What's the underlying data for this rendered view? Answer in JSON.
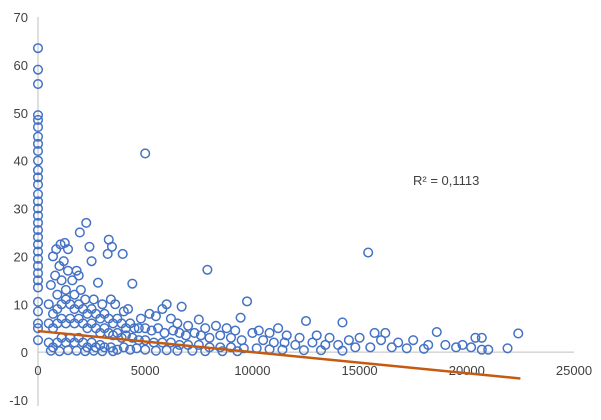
{
  "chart_data": {
    "type": "scatter",
    "title": "",
    "xlabel": "",
    "ylabel": "",
    "xlim": [
      0,
      25000
    ],
    "ylim": [
      -10,
      70
    ],
    "xticks": [
      0,
      5000,
      10000,
      15000,
      20000,
      25000
    ],
    "yticks": [
      -10,
      0,
      10,
      20,
      30,
      40,
      50,
      60,
      70
    ],
    "xtick_labels": [
      "0",
      "5000",
      "10000",
      "15000",
      "20000",
      "25000"
    ],
    "ytick_labels": [
      "-10",
      "0",
      "10",
      "20",
      "30",
      "40",
      "50",
      "60",
      "70"
    ],
    "grid": false,
    "legend": "none",
    "marker_color": "#4472C4",
    "trendline_color": "#C55A11",
    "trendline": {
      "type": "linear",
      "x": [
        0,
        22500
      ],
      "y": [
        4.4,
        -5.5
      ]
    },
    "annotation": "R² = 0,1113",
    "points": [
      [
        0,
        63.5
      ],
      [
        0,
        59
      ],
      [
        0,
        56
      ],
      [
        0,
        49.5
      ],
      [
        0,
        48.5
      ],
      [
        0,
        47
      ],
      [
        0,
        45
      ],
      [
        0,
        43.5
      ],
      [
        0,
        42
      ],
      [
        0,
        40
      ],
      [
        0,
        38
      ],
      [
        0,
        36.5
      ],
      [
        0,
        35
      ],
      [
        0,
        33
      ],
      [
        0,
        31.5
      ],
      [
        0,
        30
      ],
      [
        0,
        28.5
      ],
      [
        0,
        27
      ],
      [
        0,
        25.5
      ],
      [
        0,
        24
      ],
      [
        0,
        22.5
      ],
      [
        0,
        21
      ],
      [
        0,
        19.5
      ],
      [
        0,
        18
      ],
      [
        0,
        16.5
      ],
      [
        0,
        15
      ],
      [
        0,
        13.5
      ],
      [
        0,
        10.5
      ],
      [
        0,
        8.5
      ],
      [
        0,
        6
      ],
      [
        0,
        5
      ],
      [
        0,
        2.5
      ],
      [
        5000,
        41.5
      ],
      [
        2250,
        27
      ],
      [
        1950,
        25
      ],
      [
        3300,
        23.5
      ],
      [
        3450,
        22
      ],
      [
        2400,
        22
      ],
      [
        1050,
        22.5
      ],
      [
        1250,
        22.8
      ],
      [
        850,
        21.5
      ],
      [
        1400,
        21.5
      ],
      [
        3250,
        20.5
      ],
      [
        3950,
        20.5
      ],
      [
        700,
        20
      ],
      [
        2500,
        19
      ],
      [
        15400,
        20.8
      ],
      [
        7900,
        17.2
      ],
      [
        1800,
        17
      ],
      [
        1900,
        16
      ],
      [
        4400,
        14.3
      ],
      [
        2800,
        14.5
      ],
      [
        9750,
        10.6
      ],
      [
        6000,
        10
      ],
      [
        5800,
        9
      ],
      [
        6700,
        9.5
      ],
      [
        4000,
        8.5
      ],
      [
        9450,
        7.2
      ],
      [
        7500,
        6.8
      ],
      [
        12500,
        6.5
      ],
      [
        14200,
        6.2
      ],
      [
        18600,
        4.2
      ],
      [
        20400,
        3
      ],
      [
        20700,
        3
      ],
      [
        22400,
        3.9
      ],
      [
        21900,
        0.8
      ],
      [
        20700,
        0.5
      ],
      [
        16200,
        4
      ],
      [
        15700,
        4
      ],
      [
        19800,
        1.5
      ],
      [
        11200,
        5
      ],
      [
        10300,
        4.5
      ],
      [
        600,
        14
      ],
      [
        800,
        16
      ],
      [
        1000,
        18
      ],
      [
        1200,
        19
      ],
      [
        1100,
        15
      ],
      [
        1400,
        17
      ],
      [
        1600,
        15
      ],
      [
        900,
        12
      ],
      [
        1300,
        13
      ],
      [
        1700,
        12
      ],
      [
        2000,
        13
      ],
      [
        2200,
        11
      ],
      [
        2600,
        11
      ],
      [
        3000,
        10
      ],
      [
        3400,
        11
      ],
      [
        3600,
        10
      ],
      [
        4200,
        9
      ],
      [
        4800,
        7
      ],
      [
        5200,
        8
      ],
      [
        5500,
        7.5
      ],
      [
        6200,
        7
      ],
      [
        6500,
        6
      ],
      [
        7000,
        5.5
      ],
      [
        7800,
        5
      ],
      [
        8300,
        5.5
      ],
      [
        8800,
        5
      ],
      [
        9200,
        4.5
      ],
      [
        10000,
        4
      ],
      [
        10800,
        4
      ],
      [
        11600,
        3.5
      ],
      [
        12200,
        3
      ],
      [
        13000,
        3.5
      ],
      [
        13600,
        3
      ],
      [
        14500,
        2.5
      ],
      [
        15000,
        3
      ],
      [
        16000,
        2.5
      ],
      [
        16800,
        2
      ],
      [
        17500,
        2.5
      ],
      [
        18200,
        1.5
      ],
      [
        19000,
        1.5
      ],
      [
        19500,
        1
      ],
      [
        20200,
        1
      ],
      [
        21000,
        0.5
      ],
      [
        500,
        10
      ],
      [
        700,
        8
      ],
      [
        900,
        9
      ],
      [
        1100,
        10
      ],
      [
        1300,
        11
      ],
      [
        1500,
        10
      ],
      [
        1700,
        9
      ],
      [
        1900,
        10
      ],
      [
        2100,
        9
      ],
      [
        2300,
        8
      ],
      [
        2500,
        9
      ],
      [
        2700,
        8
      ],
      [
        2900,
        7
      ],
      [
        3100,
        8
      ],
      [
        3300,
        7
      ],
      [
        3500,
        6
      ],
      [
        3700,
        7
      ],
      [
        3900,
        6
      ],
      [
        4100,
        5
      ],
      [
        4300,
        6
      ],
      [
        4500,
        5
      ],
      [
        4700,
        5
      ],
      [
        5000,
        5
      ],
      [
        5300,
        4.5
      ],
      [
        5600,
        5
      ],
      [
        5900,
        4
      ],
      [
        6300,
        4.5
      ],
      [
        6600,
        4
      ],
      [
        6900,
        3.5
      ],
      [
        7300,
        4
      ],
      [
        7600,
        3.5
      ],
      [
        8000,
        3
      ],
      [
        8500,
        3.5
      ],
      [
        9000,
        3
      ],
      [
        9500,
        2.5
      ],
      [
        10500,
        2.5
      ],
      [
        11000,
        2
      ],
      [
        11500,
        2
      ],
      [
        12000,
        1.5
      ],
      [
        12800,
        2
      ],
      [
        13400,
        1.5
      ],
      [
        14000,
        1.5
      ],
      [
        14800,
        1
      ],
      [
        15500,
        1
      ],
      [
        16500,
        1
      ],
      [
        17200,
        0.8
      ],
      [
        18000,
        0.7
      ],
      [
        500,
        6
      ],
      [
        700,
        5
      ],
      [
        900,
        6
      ],
      [
        1100,
        7
      ],
      [
        1300,
        6
      ],
      [
        1500,
        7
      ],
      [
        1700,
        6
      ],
      [
        1900,
        7
      ],
      [
        2100,
        6
      ],
      [
        2300,
        5
      ],
      [
        2500,
        6
      ],
      [
        2700,
        5
      ],
      [
        2900,
        4
      ],
      [
        3100,
        5
      ],
      [
        3300,
        4
      ],
      [
        3500,
        3.5
      ],
      [
        3700,
        4
      ],
      [
        3900,
        3
      ],
      [
        4100,
        3.5
      ],
      [
        4400,
        3
      ],
      [
        4700,
        2.5
      ],
      [
        5000,
        2.5
      ],
      [
        5400,
        2
      ],
      [
        5800,
        2
      ],
      [
        6200,
        2
      ],
      [
        6600,
        1.5
      ],
      [
        7000,
        1.5
      ],
      [
        7500,
        1.5
      ],
      [
        8000,
        1
      ],
      [
        8500,
        1
      ],
      [
        9000,
        1
      ],
      [
        9600,
        0.8
      ],
      [
        10200,
        0.8
      ],
      [
        10800,
        0.6
      ],
      [
        11400,
        0.5
      ],
      [
        12400,
        0.4
      ],
      [
        13200,
        0.4
      ],
      [
        14200,
        0.3
      ],
      [
        500,
        2
      ],
      [
        700,
        1
      ],
      [
        900,
        2
      ],
      [
        1100,
        3
      ],
      [
        1300,
        2
      ],
      [
        1500,
        3
      ],
      [
        1700,
        2
      ],
      [
        1900,
        3
      ],
      [
        2100,
        2
      ],
      [
        2300,
        1
      ],
      [
        2500,
        2
      ],
      [
        2700,
        1
      ],
      [
        2900,
        1.5
      ],
      [
        3100,
        1
      ],
      [
        3400,
        1
      ],
      [
        3700,
        0.5
      ],
      [
        4000,
        1
      ],
      [
        4300,
        0.5
      ],
      [
        4600,
        0.8
      ],
      [
        5000,
        0.5
      ],
      [
        5500,
        0.3
      ],
      [
        6000,
        0.4
      ],
      [
        6500,
        0.3
      ],
      [
        7200,
        0.3
      ],
      [
        7800,
        0.2
      ],
      [
        8600,
        0.2
      ],
      [
        9300,
        0.2
      ],
      [
        600,
        0.3
      ],
      [
        1000,
        0.2
      ],
      [
        1400,
        0.4
      ],
      [
        1800,
        0.3
      ],
      [
        2200,
        0.2
      ],
      [
        2600,
        0.3
      ],
      [
        3000,
        0.2
      ],
      [
        3500,
        0.2
      ]
    ]
  }
}
